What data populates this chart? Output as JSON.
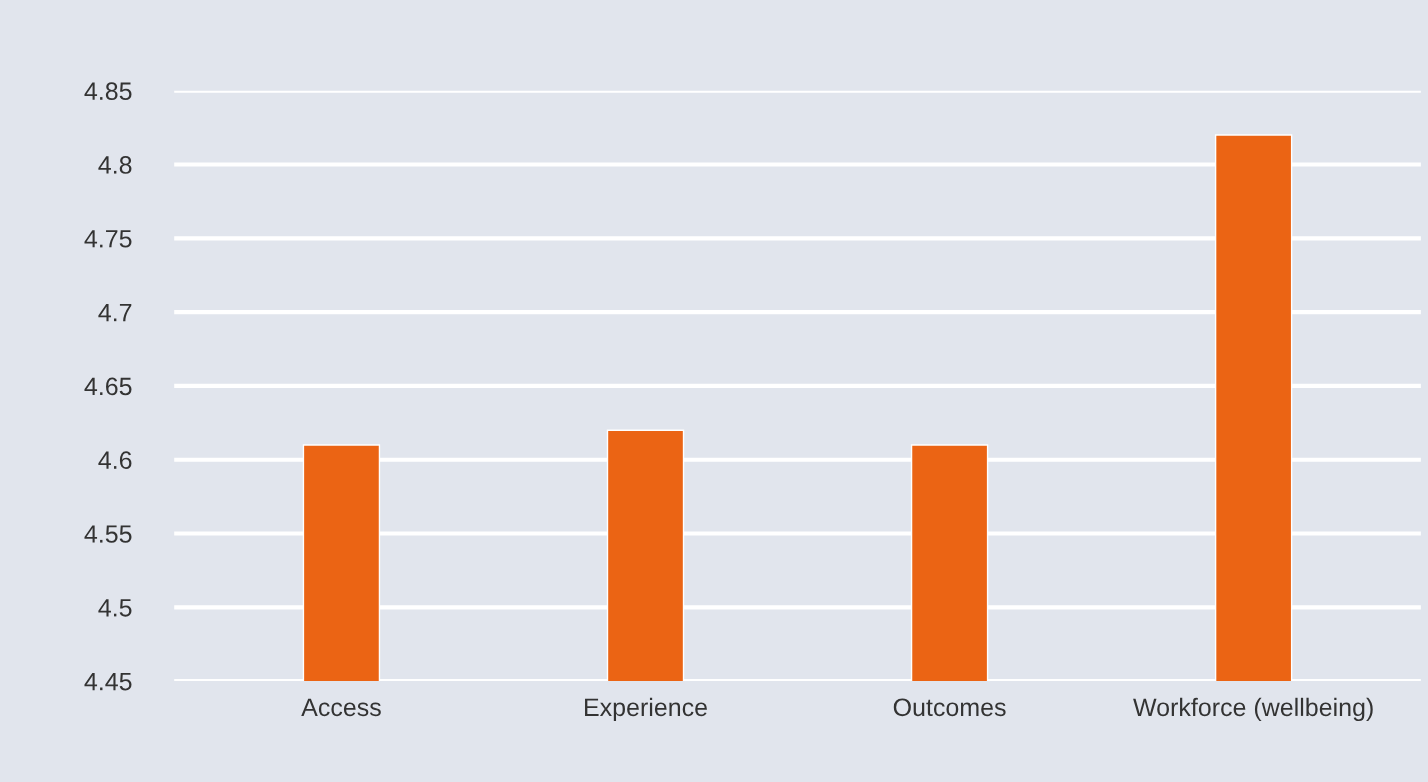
{
  "chart_data": {
    "type": "bar",
    "categories": [
      "Access",
      "Experience",
      "Outcomes",
      "Workforce (wellbeing)"
    ],
    "values": [
      4.61,
      4.62,
      4.61,
      4.82
    ],
    "color": "#eb6414",
    "ylim": [
      4.45,
      4.85
    ],
    "yticks": [
      4.45,
      4.5,
      4.55,
      4.6,
      4.65,
      4.7,
      4.75,
      4.8,
      4.85
    ],
    "grid": "y"
  }
}
